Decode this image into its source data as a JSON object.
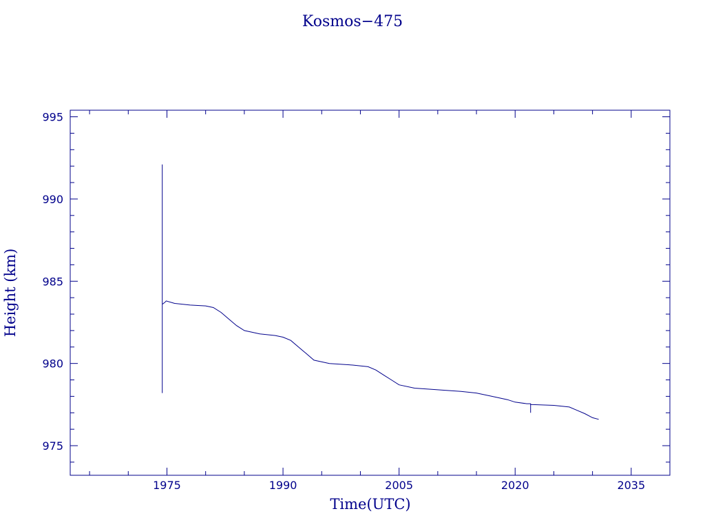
{
  "chart_data": {
    "type": "line",
    "title": "Kosmos−475",
    "xlabel": "Time(UTC)",
    "ylabel": "Height (km)",
    "xlim": [
      1962.5,
      2040
    ],
    "ylim": [
      973.2,
      995.4
    ],
    "x_ticks": [
      1975,
      1990,
      2005,
      2020,
      2035
    ],
    "y_ticks": [
      975,
      980,
      985,
      990,
      995
    ],
    "grid": false,
    "color": "#00008b",
    "series": [
      {
        "values": [
          [
            1974.4,
            992.1
          ],
          [
            1974.4,
            978.2
          ],
          [
            1974.4,
            983.6
          ],
          [
            1974.7,
            983.7
          ],
          [
            1974.9,
            983.8
          ],
          [
            1976.0,
            983.65
          ],
          [
            1978.0,
            983.55
          ],
          [
            1980.0,
            983.5
          ],
          [
            1981.0,
            983.4
          ],
          [
            1982.0,
            983.1
          ],
          [
            1983.0,
            982.7
          ],
          [
            1984.0,
            982.3
          ],
          [
            1985.0,
            982.0
          ],
          [
            1987.0,
            981.8
          ],
          [
            1989.0,
            981.7
          ],
          [
            1990.0,
            981.6
          ],
          [
            1991.0,
            981.4
          ],
          [
            1992.0,
            981.0
          ],
          [
            1993.0,
            980.6
          ],
          [
            1994.0,
            980.2
          ],
          [
            1996.0,
            980.0
          ],
          [
            1999.0,
            979.9
          ],
          [
            2001.0,
            979.8
          ],
          [
            2002.0,
            979.6
          ],
          [
            2003.0,
            979.3
          ],
          [
            2004.0,
            979.0
          ],
          [
            2005.0,
            978.7
          ],
          [
            2007.0,
            978.5
          ],
          [
            2010.0,
            978.4
          ],
          [
            2013.0,
            978.3
          ],
          [
            2015.0,
            978.2
          ],
          [
            2017.0,
            978.0
          ],
          [
            2019.0,
            977.8
          ],
          [
            2020.0,
            977.65
          ],
          [
            2021.5,
            977.55
          ],
          [
            2022.0,
            977.55
          ],
          [
            2022.0,
            977.0
          ],
          [
            2022.0,
            977.5
          ],
          [
            2025.0,
            977.45
          ],
          [
            2027.0,
            977.35
          ],
          [
            2028.0,
            977.15
          ],
          [
            2029.0,
            976.95
          ],
          [
            2030.0,
            976.7
          ],
          [
            2030.8,
            976.6
          ]
        ]
      }
    ]
  }
}
